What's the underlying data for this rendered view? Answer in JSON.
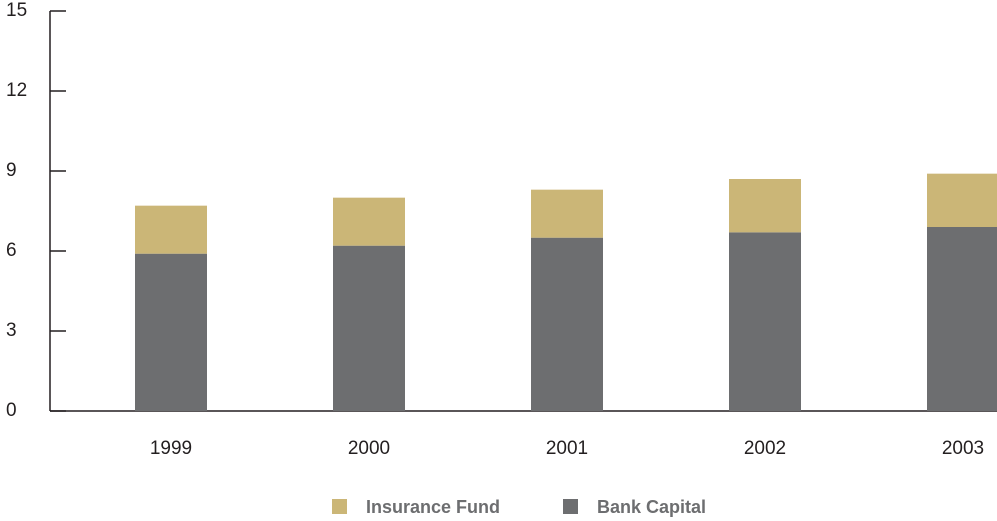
{
  "chart_data": {
    "type": "bar",
    "stacked": true,
    "categories": [
      "1999",
      "2000",
      "2001",
      "2002",
      "2003"
    ],
    "series": [
      {
        "name": "Insurance Fund",
        "color": "#cbb677",
        "values": [
          1.8,
          1.8,
          1.8,
          2.0,
          2.0
        ]
      },
      {
        "name": "Bank Capital",
        "color": "#6d6e70",
        "values": [
          5.9,
          6.2,
          6.5,
          6.7,
          6.9
        ]
      }
    ],
    "ylim": [
      0,
      15
    ],
    "yticks": [
      0,
      3,
      6,
      9,
      12,
      15
    ],
    "grid": false
  }
}
